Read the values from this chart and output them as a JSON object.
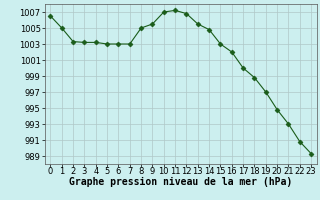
{
  "x": [
    0,
    1,
    2,
    3,
    4,
    5,
    6,
    7,
    8,
    9,
    10,
    11,
    12,
    13,
    14,
    15,
    16,
    17,
    18,
    19,
    20,
    21,
    22,
    23
  ],
  "y": [
    1006.5,
    1005.0,
    1003.3,
    1003.2,
    1003.2,
    1003.0,
    1003.0,
    1003.0,
    1005.0,
    1005.5,
    1007.0,
    1007.2,
    1006.8,
    1005.5,
    1004.8,
    1003.0,
    1002.0,
    1000.0,
    998.8,
    997.0,
    994.8,
    993.0,
    990.8,
    989.3
  ],
  "line_color": "#1a5c1a",
  "marker": "D",
  "marker_size": 2.5,
  "bg_color": "#ccefef",
  "grid_color": "#b0c8c8",
  "xlabel": "Graphe pression niveau de la mer (hPa)",
  "xlabel_fontsize": 7,
  "tick_fontsize": 6,
  "ylim": [
    988,
    1008
  ],
  "yticks": [
    989,
    991,
    993,
    995,
    997,
    999,
    1001,
    1003,
    1005,
    1007
  ],
  "xlim": [
    -0.5,
    23.5
  ],
  "xticks": [
    0,
    1,
    2,
    3,
    4,
    5,
    6,
    7,
    8,
    9,
    10,
    11,
    12,
    13,
    14,
    15,
    16,
    17,
    18,
    19,
    20,
    21,
    22,
    23
  ]
}
